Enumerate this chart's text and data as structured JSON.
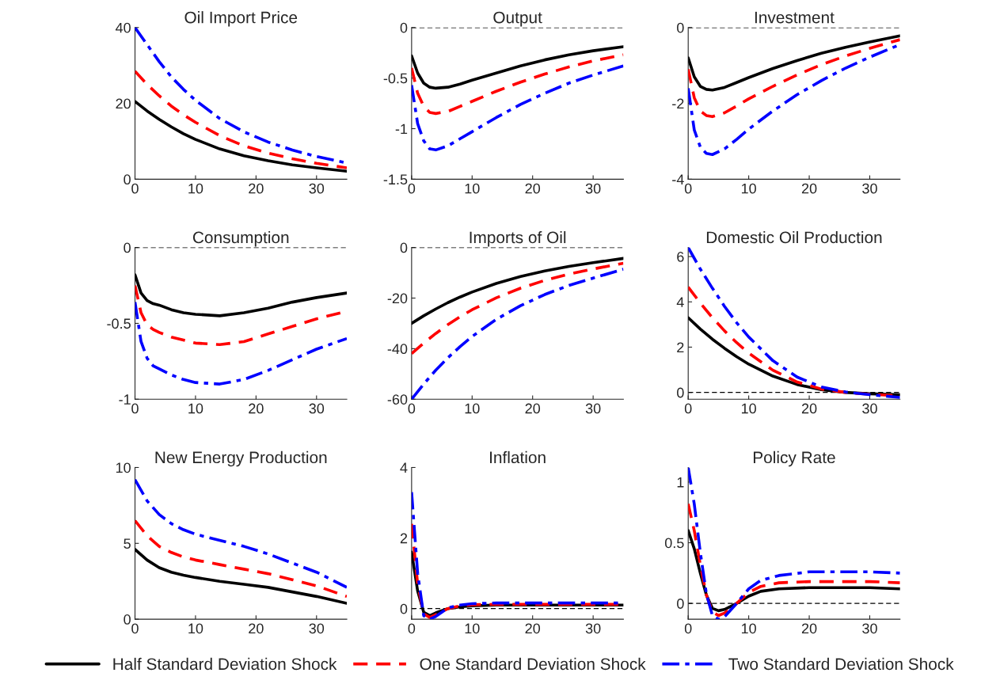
{
  "chart_data": [
    {
      "type": "line",
      "title": "Oil Import Price",
      "x": [
        0,
        2,
        4,
        6,
        8,
        10,
        14,
        18,
        22,
        26,
        30,
        35
      ],
      "xlim": [
        0,
        35
      ],
      "xticks": [
        0,
        10,
        20,
        30
      ],
      "ylim": [
        0,
        40
      ],
      "yticks": [
        0,
        20,
        40
      ],
      "grid": false,
      "legend": "bottom",
      "series": [
        {
          "name": "Half Standard Deviation Shock",
          "color": "#000000",
          "line_style": "solid",
          "values": [
            20.5,
            18,
            15.8,
            13.8,
            12,
            10.5,
            8,
            6.2,
            4.9,
            3.8,
            3,
            2.1
          ]
        },
        {
          "name": "One Standard Deviation Shock",
          "color": "#ff0000",
          "line_style": "dashed",
          "values": [
            28.5,
            25,
            22,
            19.3,
            17,
            15,
            11.5,
            8.8,
            6.9,
            5.4,
            4.2,
            3
          ]
        },
        {
          "name": "Two Standard Deviation Shock",
          "color": "#0000ff",
          "line_style": "dashdot",
          "values": [
            40,
            35.5,
            31,
            27,
            23.7,
            20.8,
            16,
            12.5,
            9.8,
            7.7,
            6,
            4.3
          ]
        }
      ]
    },
    {
      "type": "line",
      "title": "Output",
      "x": [
        0,
        1,
        2,
        3,
        4,
        6,
        8,
        10,
        14,
        18,
        22,
        26,
        30,
        35
      ],
      "xlim": [
        0,
        35
      ],
      "xticks": [
        0,
        10,
        20,
        30
      ],
      "ylim": [
        -1.5,
        0
      ],
      "yticks": [
        {
          "value": -1.5,
          "label": "-1.5"
        },
        {
          "value": -1,
          "label": "-1"
        },
        {
          "value": -0.5,
          "label": "-0.5"
        },
        0
      ],
      "grid": false,
      "ref_lines": [
        {
          "axis": "y",
          "value": 0,
          "color": "#000000",
          "line_style": "dashed"
        }
      ],
      "series": [
        {
          "name": "Half Standard Deviation Shock",
          "color": "#000000",
          "line_style": "solid",
          "values": [
            -0.28,
            -0.45,
            -0.55,
            -0.59,
            -0.6,
            -0.59,
            -0.56,
            -0.52,
            -0.45,
            -0.38,
            -0.32,
            -0.27,
            -0.23,
            -0.19
          ]
        },
        {
          "name": "One Standard Deviation Shock",
          "color": "#ff0000",
          "line_style": "dashed",
          "values": [
            -0.4,
            -0.65,
            -0.78,
            -0.84,
            -0.85,
            -0.83,
            -0.78,
            -0.73,
            -0.63,
            -0.54,
            -0.46,
            -0.39,
            -0.33,
            -0.27
          ]
        },
        {
          "name": "Two Standard Deviation Shock",
          "color": "#0000ff",
          "line_style": "dashdot",
          "values": [
            -0.57,
            -0.95,
            -1.12,
            -1.2,
            -1.21,
            -1.17,
            -1.1,
            -1.03,
            -0.89,
            -0.76,
            -0.65,
            -0.55,
            -0.47,
            -0.38
          ]
        }
      ]
    },
    {
      "type": "line",
      "title": "Investment",
      "x": [
        0,
        1,
        2,
        3,
        4,
        6,
        8,
        10,
        14,
        18,
        22,
        26,
        30,
        35
      ],
      "xlim": [
        0,
        35
      ],
      "xticks": [
        0,
        10,
        20,
        30
      ],
      "ylim": [
        -4,
        0
      ],
      "yticks": [
        {
          "value": -4,
          "label": "-4"
        },
        {
          "value": -2,
          "label": "-2"
        },
        0
      ],
      "grid": false,
      "ref_lines": [
        {
          "axis": "y",
          "value": 0,
          "color": "#000000",
          "line_style": "dashed"
        }
      ],
      "series": [
        {
          "name": "Half Standard Deviation Shock",
          "color": "#000000",
          "line_style": "solid",
          "values": [
            -0.8,
            -1.3,
            -1.55,
            -1.63,
            -1.65,
            -1.58,
            -1.45,
            -1.32,
            -1.08,
            -0.87,
            -0.68,
            -0.52,
            -0.38,
            -0.22
          ]
        },
        {
          "name": "One Standard Deviation Shock",
          "color": "#ff0000",
          "line_style": "dashed",
          "values": [
            -1.1,
            -1.85,
            -2.2,
            -2.32,
            -2.35,
            -2.25,
            -2.07,
            -1.88,
            -1.55,
            -1.25,
            -0.98,
            -0.75,
            -0.55,
            -0.32
          ]
        },
        {
          "name": "Two Standard Deviation Shock",
          "color": "#0000ff",
          "line_style": "dashdot",
          "values": [
            -1.6,
            -2.7,
            -3.15,
            -3.32,
            -3.35,
            -3.2,
            -2.95,
            -2.68,
            -2.2,
            -1.77,
            -1.4,
            -1.07,
            -0.78,
            -0.45
          ]
        }
      ]
    },
    {
      "type": "line",
      "title": "Consumption",
      "x": [
        0,
        1,
        2,
        3,
        4,
        6,
        8,
        10,
        14,
        18,
        22,
        26,
        30,
        35
      ],
      "xlim": [
        0,
        35
      ],
      "xticks": [
        0,
        10,
        20,
        30
      ],
      "ylim": [
        -1,
        0
      ],
      "yticks": [
        {
          "value": -1,
          "label": "-1"
        },
        {
          "value": -0.5,
          "label": "-0.5"
        },
        0
      ],
      "grid": false,
      "ref_lines": [
        {
          "axis": "y",
          "value": 0,
          "color": "#000000",
          "line_style": "dashed"
        }
      ],
      "series": [
        {
          "name": "Half Standard Deviation Shock",
          "color": "#000000",
          "line_style": "solid",
          "values": [
            -0.18,
            -0.3,
            -0.35,
            -0.37,
            -0.38,
            -0.41,
            -0.43,
            -0.44,
            -0.45,
            -0.43,
            -0.4,
            -0.36,
            -0.33,
            -0.3
          ]
        },
        {
          "name": "One Standard Deviation Shock",
          "color": "#ff0000",
          "line_style": "dashed",
          "values": [
            -0.25,
            -0.43,
            -0.51,
            -0.54,
            -0.56,
            -0.59,
            -0.61,
            -0.63,
            -0.64,
            -0.62,
            -0.57,
            -0.52,
            -0.47,
            -0.42
          ]
        },
        {
          "name": "Two Standard Deviation Shock",
          "color": "#0000ff",
          "line_style": "dashdot",
          "values": [
            -0.36,
            -0.62,
            -0.73,
            -0.78,
            -0.8,
            -0.84,
            -0.87,
            -0.89,
            -0.9,
            -0.87,
            -0.81,
            -0.74,
            -0.67,
            -0.6
          ]
        }
      ]
    },
    {
      "type": "line",
      "title": "Imports of Oil",
      "x": [
        0,
        2,
        4,
        6,
        8,
        10,
        14,
        18,
        22,
        26,
        30,
        35
      ],
      "xlim": [
        0,
        35
      ],
      "xticks": [
        0,
        10,
        20,
        30
      ],
      "ylim": [
        -60,
        0
      ],
      "yticks": [
        {
          "value": -60,
          "label": "-60"
        },
        {
          "value": -40,
          "label": "-40"
        },
        {
          "value": -20,
          "label": "-20"
        },
        0
      ],
      "grid": false,
      "ref_lines": [
        {
          "axis": "y",
          "value": 0,
          "color": "#000000",
          "line_style": "dashed"
        }
      ],
      "series": [
        {
          "name": "Half Standard Deviation Shock",
          "color": "#000000",
          "line_style": "solid",
          "values": [
            -30,
            -27,
            -24.3,
            -21.8,
            -19.6,
            -17.6,
            -14.2,
            -11.5,
            -9.3,
            -7.5,
            -6,
            -4.3
          ]
        },
        {
          "name": "One Standard Deviation Shock",
          "color": "#ff0000",
          "line_style": "dashed",
          "values": [
            -42,
            -37.8,
            -34,
            -30.5,
            -27.4,
            -24.6,
            -19.9,
            -16.1,
            -13,
            -10.5,
            -8.5,
            -6.2
          ]
        },
        {
          "name": "Two Standard Deviation Shock",
          "color": "#0000ff",
          "line_style": "dashdot",
          "values": [
            -60,
            -54,
            -48.5,
            -43.6,
            -39.2,
            -35.2,
            -28.4,
            -23,
            -18.6,
            -15,
            -12.1,
            -8.6
          ]
        }
      ]
    },
    {
      "type": "line",
      "title": "Domestic Oil Production",
      "x": [
        0,
        2,
        4,
        6,
        8,
        10,
        14,
        18,
        22,
        26,
        30,
        35
      ],
      "xlim": [
        0,
        35
      ],
      "xticks": [
        0,
        10,
        20,
        30
      ],
      "ylim": [
        -0.3,
        6.4
      ],
      "yticks": [
        0,
        2,
        4,
        6
      ],
      "grid": false,
      "ref_lines": [
        {
          "axis": "y",
          "value": 0,
          "color": "#000000",
          "line_style": "dashed"
        }
      ],
      "series": [
        {
          "name": "Half Standard Deviation Shock",
          "color": "#000000",
          "line_style": "solid",
          "values": [
            3.3,
            2.8,
            2.35,
            1.95,
            1.58,
            1.25,
            0.72,
            0.35,
            0.12,
            0,
            -0.06,
            -0.1
          ]
        },
        {
          "name": "One Standard Deviation Shock",
          "color": "#ff0000",
          "line_style": "dashed",
          "values": [
            4.65,
            3.95,
            3.3,
            2.72,
            2.2,
            1.74,
            0.98,
            0.46,
            0.15,
            0,
            -0.08,
            -0.15
          ]
        },
        {
          "name": "Two Standard Deviation Shock",
          "color": "#0000ff",
          "line_style": "dashdot",
          "values": [
            6.4,
            5.45,
            4.6,
            3.8,
            3.08,
            2.45,
            1.4,
            0.68,
            0.24,
            0.02,
            -0.1,
            -0.22
          ]
        }
      ]
    },
    {
      "type": "line",
      "title": "New Energy Production",
      "x": [
        0,
        2,
        4,
        6,
        8,
        10,
        14,
        18,
        22,
        26,
        30,
        35
      ],
      "xlim": [
        0,
        35
      ],
      "xticks": [
        0,
        10,
        20,
        30
      ],
      "ylim": [
        0,
        10
      ],
      "yticks": [
        0,
        5,
        10
      ],
      "grid": false,
      "series": [
        {
          "name": "Half Standard Deviation Shock",
          "color": "#000000",
          "line_style": "solid",
          "values": [
            4.6,
            3.9,
            3.4,
            3.1,
            2.9,
            2.75,
            2.5,
            2.3,
            2.1,
            1.8,
            1.5,
            1.05
          ]
        },
        {
          "name": "One Standard Deviation Shock",
          "color": "#ff0000",
          "line_style": "dashed",
          "values": [
            6.5,
            5.5,
            4.8,
            4.4,
            4.1,
            3.9,
            3.6,
            3.3,
            3.0,
            2.6,
            2.2,
            1.5
          ]
        },
        {
          "name": "Two Standard Deviation Shock",
          "color": "#0000ff",
          "line_style": "dashdot",
          "values": [
            9.2,
            7.8,
            6.9,
            6.3,
            5.9,
            5.6,
            5.2,
            4.8,
            4.3,
            3.7,
            3.1,
            2.1
          ]
        }
      ]
    },
    {
      "type": "line",
      "title": "Inflation",
      "x": [
        0,
        1,
        2,
        3,
        4,
        6,
        8,
        10,
        14,
        20,
        30,
        35
      ],
      "xlim": [
        0,
        35
      ],
      "xticks": [
        0,
        10,
        20,
        30
      ],
      "ylim": [
        -0.3,
        4
      ],
      "yticks": [
        0,
        2,
        4
      ],
      "grid": false,
      "ref_lines": [
        {
          "axis": "y",
          "value": 0,
          "color": "#000000",
          "line_style": "dashed"
        }
      ],
      "series": [
        {
          "name": "Half Standard Deviation Shock",
          "color": "#000000",
          "line_style": "solid",
          "values": [
            1.6,
            0.5,
            -0.1,
            -0.2,
            -0.12,
            0,
            0.05,
            0.08,
            0.1,
            0.1,
            0.1,
            0.1
          ]
        },
        {
          "name": "One Standard Deviation Shock",
          "color": "#ff0000",
          "line_style": "dashed",
          "values": [
            2.4,
            0.7,
            -0.15,
            -0.25,
            -0.17,
            0,
            0.08,
            0.11,
            0.12,
            0.12,
            0.12,
            0.12
          ]
        },
        {
          "name": "Two Standard Deviation Shock",
          "color": "#0000ff",
          "line_style": "dashdot",
          "values": [
            3.3,
            1.0,
            -0.2,
            -0.3,
            -0.22,
            0.02,
            0.1,
            0.14,
            0.16,
            0.16,
            0.16,
            0.16
          ]
        }
      ]
    },
    {
      "type": "line",
      "title": "Policy Rate",
      "x": [
        0,
        1,
        2,
        3,
        4,
        5,
        6,
        8,
        10,
        12,
        15,
        20,
        25,
        30,
        35
      ],
      "xlim": [
        0,
        35
      ],
      "xticks": [
        0,
        10,
        20,
        30
      ],
      "ylim": [
        -0.13,
        1.12
      ],
      "yticks": [
        0,
        0.5,
        1
      ],
      "grid": false,
      "ref_lines": [
        {
          "axis": "y",
          "value": 0,
          "color": "#000000",
          "line_style": "dashed"
        }
      ],
      "series": [
        {
          "name": "Half Standard Deviation Shock",
          "color": "#000000",
          "line_style": "solid",
          "values": [
            0.6,
            0.45,
            0.25,
            0.07,
            -0.04,
            -0.06,
            -0.05,
            0.0,
            0.06,
            0.1,
            0.12,
            0.13,
            0.13,
            0.13,
            0.12
          ]
        },
        {
          "name": "One Standard Deviation Shock",
          "color": "#ff0000",
          "line_style": "dashed",
          "values": [
            0.82,
            0.6,
            0.32,
            0.07,
            -0.07,
            -0.1,
            -0.08,
            0.0,
            0.09,
            0.14,
            0.17,
            0.18,
            0.18,
            0.18,
            0.17
          ]
        },
        {
          "name": "Two Standard Deviation Shock",
          "color": "#0000ff",
          "line_style": "dashdot",
          "values": [
            1.12,
            0.82,
            0.42,
            0.08,
            -0.1,
            -0.13,
            -0.11,
            0.0,
            0.12,
            0.19,
            0.23,
            0.26,
            0.26,
            0.26,
            0.25
          ]
        }
      ]
    }
  ]
}
